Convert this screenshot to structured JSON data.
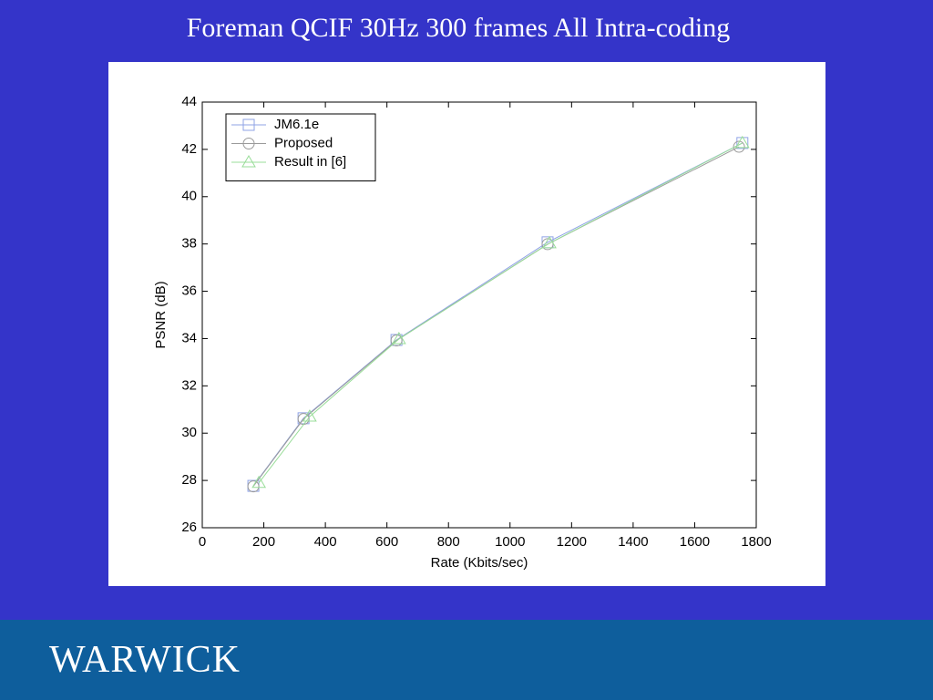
{
  "chart_data": {
    "type": "line",
    "title": "Foreman QCIF 30Hz 300 frames All Intra-coding",
    "xlabel": "Rate (Kbits/sec)",
    "ylabel": "PSNR (dB)",
    "xlim": [
      0,
      1800
    ],
    "xticks": [
      0,
      200,
      400,
      600,
      800,
      1000,
      1200,
      1400,
      1600,
      1800
    ],
    "ylim": [
      26,
      44
    ],
    "yticks": [
      26,
      28,
      30,
      32,
      34,
      36,
      38,
      40,
      42,
      44
    ],
    "legend": "upper-left",
    "series": [
      {
        "name": "JM6.1e",
        "color": "#8fa3e6",
        "marker": "square",
        "x": [
          166,
          329,
          631,
          1122,
          1755
        ],
        "values": [
          27.77,
          30.63,
          33.94,
          38.07,
          42.27
        ]
      },
      {
        "name": "Proposed",
        "color": "#9a9a9a",
        "marker": "circle",
        "x": [
          166,
          329,
          631,
          1122,
          1744
        ],
        "values": [
          27.75,
          30.6,
          33.92,
          37.99,
          42.11
        ]
      },
      {
        "name": "Result in [6]",
        "color": "#99dd99",
        "marker": "triangle",
        "x": [
          184,
          349,
          639,
          1128,
          1755
        ],
        "values": [
          27.9,
          30.7,
          33.98,
          38.03,
          42.27
        ]
      }
    ]
  },
  "footer": {
    "logo": "WARWICK"
  }
}
